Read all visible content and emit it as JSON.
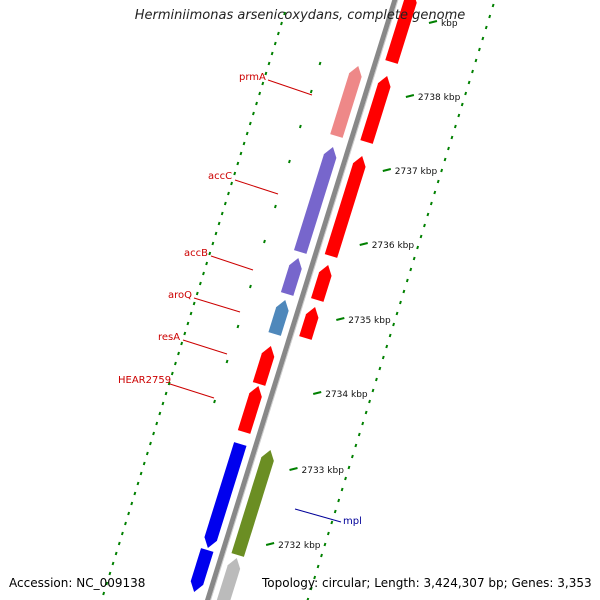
{
  "title": "Herminiimonas arsenicoxydans, complete genome",
  "accession": "Accession: NC_009138",
  "topology": "Topology: circular; Length: 3,424,307 bp; Genes: 3,353",
  "scale_labels": [
    {
      "label": "kbp",
      "kb": 2739
    },
    {
      "label": "2738 kbp",
      "kb": 2738
    },
    {
      "label": "2737 kbp",
      "kb": 2737
    },
    {
      "label": "2736 kbp",
      "kb": 2736
    },
    {
      "label": "2735 kbp",
      "kb": 2735
    },
    {
      "label": "2734 kbp",
      "kb": 2734
    },
    {
      "label": "2733 kbp",
      "kb": 2733
    },
    {
      "label": "2732 kbp",
      "kb": 2732
    }
  ],
  "gene_labels": [
    {
      "name": "prmA",
      "color": "#cc0000"
    },
    {
      "name": "accC",
      "color": "#cc0000"
    },
    {
      "name": "accB",
      "color": "#cc0000"
    },
    {
      "name": "aroQ",
      "color": "#cc0000"
    },
    {
      "name": "resA",
      "color": "#cc0000"
    },
    {
      "name": "HEAR2759",
      "color": "#cc0000"
    },
    {
      "name": "mpl",
      "color": "#000099"
    }
  ],
  "colors": {
    "cds": "#ff0000",
    "cds_light": "#ee8888",
    "lipid": "#7766cc",
    "steelblue": "#4f88bb",
    "blue": "#0000ee",
    "olive": "#6b8e23",
    "backbone": "#888888",
    "gc_skew": "#008000"
  }
}
